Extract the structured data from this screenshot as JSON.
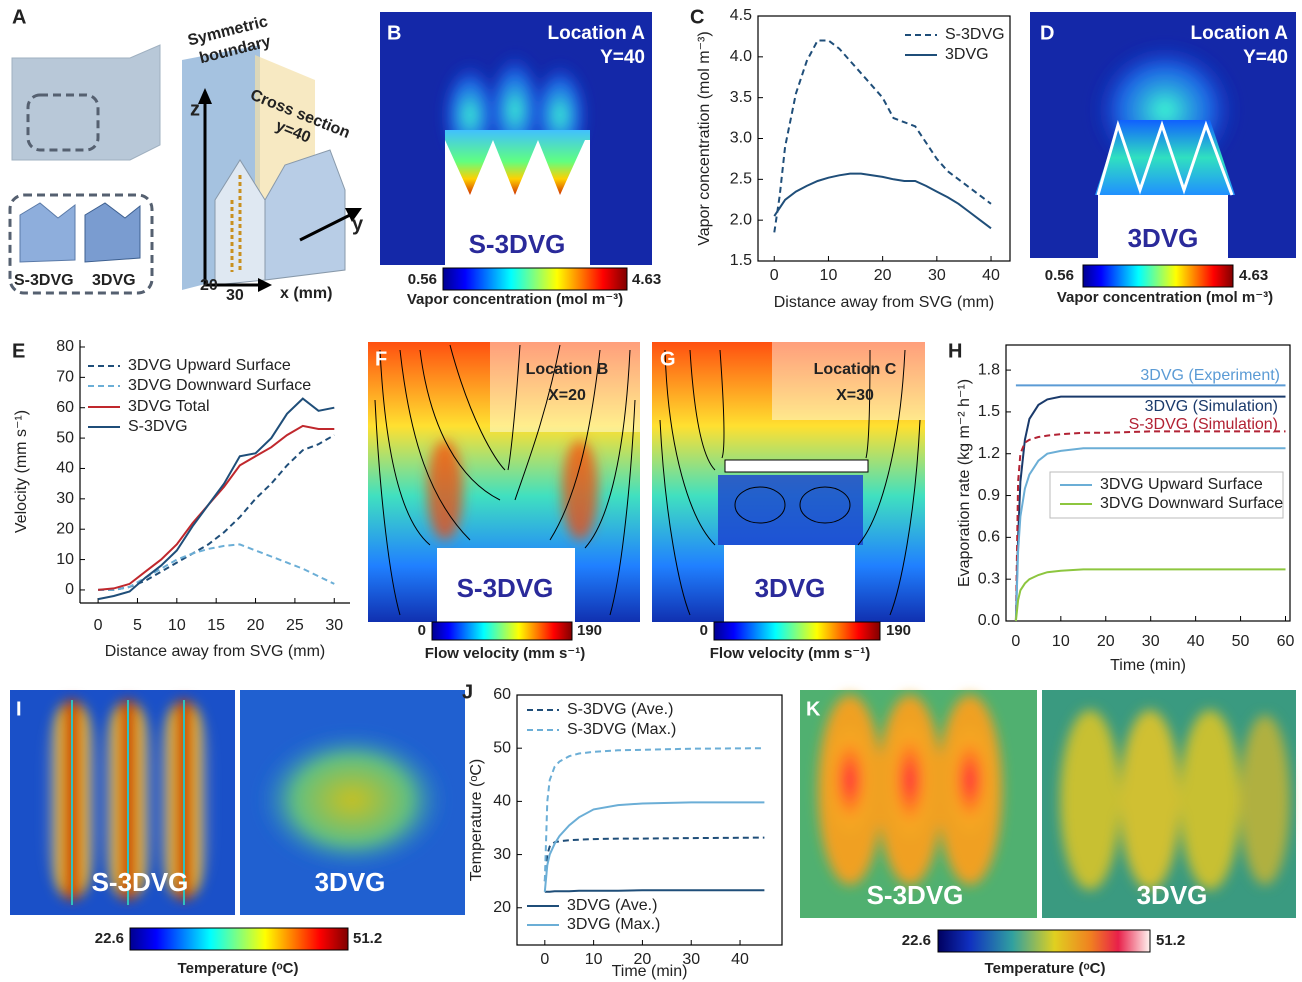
{
  "chart_data": [
    {
      "type": "line",
      "panel": "C",
      "xlabel": "Distance away from SVG (mm)",
      "ylabel": "Vapor concentration (mol m⁻³)",
      "xlim": [
        -3,
        43.5
      ],
      "ylim": [
        1.5,
        4.5
      ],
      "xticks": [
        0,
        10,
        20,
        30,
        40
      ],
      "yticks": [
        1.5,
        {
          "value": 2,
          "label": "2.0"
        },
        2.5,
        {
          "value": 3,
          "label": "3.0"
        },
        3.5,
        {
          "value": 4,
          "label": "4.0"
        },
        4.5
      ],
      "x": [
        0,
        1,
        2,
        4,
        6,
        8,
        10,
        12,
        14,
        16,
        18,
        20,
        22,
        24,
        26,
        28,
        30,
        32,
        34,
        36,
        38,
        40
      ],
      "series": [
        {
          "name": "S-3DVG",
          "color": "#1f4e79",
          "line_style": "dashed",
          "values": [
            1.85,
            2.3,
            2.9,
            3.55,
            3.95,
            4.2,
            4.2,
            4.1,
            3.95,
            3.8,
            3.65,
            3.5,
            3.25,
            3.2,
            3.15,
            2.95,
            2.75,
            2.6,
            2.5,
            2.4,
            2.3,
            2.2
          ]
        },
        {
          "name": "3DVG",
          "color": "#1f4e79",
          "line_style": "solid",
          "values": [
            2.05,
            2.15,
            2.25,
            2.35,
            2.42,
            2.48,
            2.52,
            2.55,
            2.57,
            2.57,
            2.55,
            2.53,
            2.5,
            2.48,
            2.48,
            2.42,
            2.35,
            2.28,
            2.2,
            2.1,
            2.0,
            1.9
          ]
        }
      ]
    },
    {
      "type": "line",
      "panel": "E",
      "xlabel": "Distance away from SVG (mm)",
      "ylabel": "Velocity (mm s⁻¹)",
      "xlim": [
        -2.3,
        32
      ],
      "ylim": [
        -4.3,
        82.3
      ],
      "xticks": [
        0,
        5,
        10,
        15,
        20,
        25,
        30
      ],
      "yticks": [
        0,
        10,
        20,
        30,
        40,
        50,
        60,
        70,
        80
      ],
      "x": [
        0,
        2,
        4,
        6,
        8,
        10,
        12,
        14,
        16,
        18,
        20,
        22,
        24,
        26,
        28,
        30
      ],
      "series": [
        {
          "name": "3DVG Upward Surface",
          "color": "#1f4e79",
          "line_style": "dashed",
          "values": [
            0,
            0,
            1,
            3,
            6,
            9,
            12,
            15,
            19,
            24,
            30,
            35,
            41,
            46,
            48,
            51
          ]
        },
        {
          "name": "3DVG Downward Surface",
          "color": "#6baed6",
          "line_style": "dashed",
          "values": [
            0,
            0,
            1,
            4,
            7,
            10,
            12,
            13.5,
            14.5,
            15,
            13,
            11,
            9,
            7,
            4.5,
            2
          ]
        },
        {
          "name": "3DVG Total",
          "color": "#c0282d",
          "line_style": "solid",
          "values": [
            0,
            0.5,
            2,
            6,
            10,
            15,
            22,
            28,
            34,
            41,
            44,
            47,
            51,
            54,
            53,
            53
          ]
        },
        {
          "name": "S-3DVG",
          "color": "#1f4e79",
          "line_style": "solid",
          "values": [
            -3,
            -2,
            -0.5,
            4,
            8,
            13,
            21,
            28,
            35,
            44,
            45,
            50,
            58,
            63,
            59,
            60
          ]
        }
      ]
    },
    {
      "type": "line",
      "panel": "H",
      "xlabel": "Time (min)",
      "ylabel": "Evaporation rate (kg m⁻² h⁻¹)",
      "xlim": [
        -2.2,
        61
      ],
      "ylim": [
        0,
        1.98
      ],
      "xticks": [
        0,
        10,
        20,
        30,
        40,
        50,
        60
      ],
      "yticks": [
        {
          "value": 0,
          "label": "0.0"
        },
        0.3,
        0.6,
        0.9,
        1.2,
        1.5,
        1.8
      ],
      "x": [
        0,
        0.5,
        1,
        2,
        3,
        5,
        7,
        10,
        15,
        20,
        30,
        40,
        50,
        60
      ],
      "series": [
        {
          "name": "3DVG (Experiment)",
          "color": "#5b9bd5",
          "line_style": "solid",
          "values": [
            1.69,
            1.69,
            1.69,
            1.69,
            1.69,
            1.69,
            1.69,
            1.69,
            1.69,
            1.69,
            1.69,
            1.69,
            1.69,
            1.69
          ]
        },
        {
          "name": "3DVG (Simulation)",
          "color": "#1a3a6b",
          "line_style": "solid",
          "values": [
            0,
            0.6,
            1.0,
            1.3,
            1.45,
            1.55,
            1.59,
            1.61,
            1.61,
            1.61,
            1.61,
            1.61,
            1.61,
            1.61
          ]
        },
        {
          "name": "S-3DVG  (Simulation)",
          "color": "#b22234",
          "line_style": "dashed",
          "values": [
            0,
            1.0,
            1.2,
            1.28,
            1.3,
            1.32,
            1.33,
            1.34,
            1.35,
            1.35,
            1.36,
            1.36,
            1.36,
            1.36
          ]
        },
        {
          "name": "3DVG Upward Surface",
          "color": "#6baed6",
          "line_style": "solid",
          "values": [
            0,
            0.5,
            0.75,
            0.95,
            1.05,
            1.15,
            1.2,
            1.22,
            1.24,
            1.24,
            1.24,
            1.24,
            1.24,
            1.24
          ]
        },
        {
          "name": "3DVG Downward Surface",
          "color": "#8dc63f",
          "line_style": "solid",
          "values": [
            0,
            0.15,
            0.22,
            0.27,
            0.3,
            0.33,
            0.35,
            0.36,
            0.37,
            0.37,
            0.37,
            0.37,
            0.37,
            0.37
          ]
        }
      ]
    },
    {
      "type": "line",
      "panel": "J",
      "xlabel": "Time (min)",
      "ylabel": "Temperature (ᵒC)",
      "xlim": [
        -5.7,
        48.6
      ],
      "ylim": [
        13,
        60
      ],
      "xticks": [
        0,
        10,
        20,
        30,
        40
      ],
      "yticks": [
        20,
        30,
        40,
        50,
        60
      ],
      "x": [
        0,
        0.5,
        1,
        2,
        3,
        5,
        7,
        10,
        15,
        20,
        30,
        45
      ],
      "series": [
        {
          "name": "S-3DVG (Ave.)",
          "color": "#1f4e79",
          "line_style": "dashed",
          "values": [
            25,
            30,
            31.5,
            32.3,
            32.5,
            32.7,
            32.8,
            32.9,
            33,
            33,
            33.1,
            33.2
          ]
        },
        {
          "name": "S-3DVG (Max.)",
          "color": "#6baed6",
          "line_style": "dashed",
          "values": [
            25,
            40,
            44,
            46.5,
            47.5,
            48.5,
            49,
            49.3,
            49.6,
            49.7,
            49.9,
            50
          ]
        },
        {
          "name": "3DVG (Ave.)",
          "color": "#1f4e79",
          "line_style": "solid",
          "values": [
            23,
            23,
            23,
            23.1,
            23.1,
            23.1,
            23.2,
            23.2,
            23.2,
            23.3,
            23.3,
            23.3
          ]
        },
        {
          "name": "3DVG (Max.)",
          "color": "#6baed6",
          "line_style": "solid",
          "values": [
            23,
            28,
            30,
            32,
            33.5,
            35.5,
            37,
            38.5,
            39.3,
            39.6,
            39.8,
            39.8
          ]
        }
      ]
    }
  ],
  "panels": {
    "a": {
      "letter": "A",
      "boundary": [
        "Symmetric",
        "boundary"
      ],
      "section": [
        "Cross section",
        "y=40"
      ],
      "axes": [
        "z",
        "y",
        "x (mm)"
      ],
      "marks": [
        20,
        30
      ],
      "samples": [
        "S-3DVG",
        "3DVG"
      ]
    },
    "b": {
      "letter": "B",
      "location": "Location A",
      "position": "Y=40",
      "sample": "S-3DVG",
      "colorbar": {
        "min": 0.56,
        "max": 4.63,
        "label": "Vapor concentration (mol m⁻³)"
      }
    },
    "d": {
      "letter": "D",
      "location": "Location A",
      "position": "Y=40",
      "sample": "3DVG",
      "colorbar": {
        "min": 0.56,
        "max": 4.63,
        "label": "Vapor concentration (mol m⁻³)"
      }
    },
    "f": {
      "letter": "F",
      "location": "Location B",
      "position": "X=20",
      "sample": "S-3DVG",
      "colorbar": {
        "min": 0,
        "max": 190,
        "label": "Flow velocity (mm s⁻¹)"
      }
    },
    "g": {
      "letter": "G",
      "location": "Location C",
      "position": "X=30",
      "sample": "3DVG",
      "colorbar": {
        "min": 0,
        "max": 190,
        "label": "Flow velocity (mm s⁻¹)"
      }
    },
    "i": {
      "letter": "I",
      "samples": [
        "S-3DVG",
        "3DVG"
      ],
      "colorbar": {
        "min": 22.6,
        "max": 51.2,
        "label": "Temperature (ᵒC)"
      }
    },
    "k": {
      "letter": "K",
      "samples": [
        "S-3DVG",
        "3DVG"
      ],
      "colorbar": {
        "min": 22.6,
        "max": 51.2,
        "label": "Temperature (ᵒC)"
      }
    }
  }
}
